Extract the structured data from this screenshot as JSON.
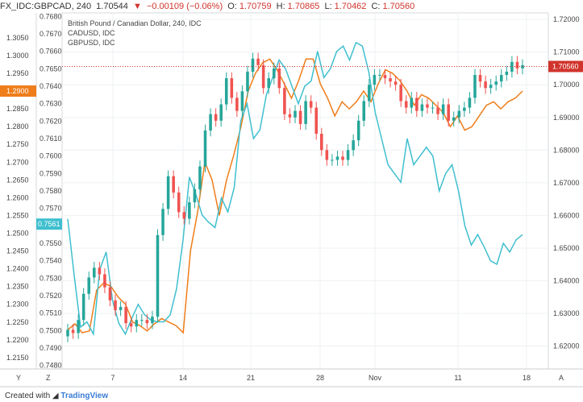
{
  "header": {
    "symbol": "FX_IDC:GBPCAD, 240",
    "last": "1.70544",
    "change": "−0.00109 (−0.06%)",
    "open_label": "O:",
    "open": "1.70759",
    "high_label": "H:",
    "high": "1.70865",
    "low_label": "L:",
    "low": "1.70462",
    "close_label": "C:",
    "close": "1.70560"
  },
  "legend": {
    "main": "British Pound / Canadian Dollar, 240, IDC",
    "cad": "CADUSD, IDC",
    "gbp": "GBPUSD, IDC"
  },
  "footer": {
    "created_with": "Created with",
    "brand": "TradingView"
  },
  "axis_buttons": {
    "left_y": "Y",
    "left_z": "Z",
    "right_a": "A"
  },
  "colors": {
    "candle_up": "#26a69a",
    "candle_down": "#ef5350",
    "cadusd": "#3fbfcf",
    "gbpusd": "#ef7d1a",
    "price_line": "#d0342c",
    "grid": "#eef0f3"
  },
  "chart_data": {
    "type": "line",
    "x_tick_labels": [
      "7",
      "14",
      "21",
      "28",
      "Nov",
      "11",
      "18"
    ],
    "axes": {
      "right_GBPCAD": {
        "ticks": [
          "1.72000",
          "1.71000",
          "1.70000",
          "1.69000",
          "1.68000",
          "1.67000",
          "1.66000",
          "1.65000",
          "1.64000",
          "1.63000",
          "1.62000"
        ],
        "range": [
          1.613,
          1.722
        ],
        "current_label": "1.70560",
        "current_value": 1.7056
      },
      "inner_CADUSD": {
        "ticks": [
          "0.7680",
          "0.7670",
          "0.7660",
          "0.7650",
          "0.7640",
          "0.7630",
          "0.7620",
          "0.7610",
          "0.7600",
          "0.7590",
          "0.7580",
          "0.7570",
          "0.7560",
          "0.7550",
          "0.7540",
          "0.7530",
          "0.7520",
          "0.7510",
          "0.7500",
          "0.7490",
          "0.7480"
        ],
        "range": [
          0.7478,
          0.7682
        ],
        "current_label": "0.7561",
        "current_value": 0.7561
      },
      "outer_GBPUSD": {
        "ticks": [
          "1.3050",
          "1.3000",
          "1.2950",
          "1.2900",
          "1.2850",
          "1.2800",
          "1.2750",
          "1.2700",
          "1.2650",
          "1.2600",
          "1.2550",
          "1.2500",
          "1.2450",
          "1.2400",
          "1.2350",
          "1.2300",
          "1.2250",
          "1.2200",
          "1.2150"
        ],
        "range": [
          1.2118,
          1.312
        ],
        "current_label": "1.2900",
        "current_value": 1.29
      }
    },
    "gbpcad_close": [
      1.625,
      1.624,
      1.628,
      1.636,
      1.641,
      1.644,
      1.642,
      1.638,
      1.634,
      1.631,
      1.632,
      1.627,
      1.626,
      1.628,
      1.628,
      1.627,
      1.629,
      1.654,
      1.662,
      1.672,
      1.667,
      1.661,
      1.659,
      1.664,
      1.668,
      1.675,
      1.686,
      1.691,
      1.689,
      1.694,
      1.702,
      1.696,
      1.692,
      1.698,
      1.704,
      1.708,
      1.706,
      1.699,
      1.702,
      1.705,
      1.699,
      1.691,
      1.69,
      1.692,
      1.688,
      1.695,
      1.693,
      1.685,
      1.68,
      1.677,
      1.677,
      1.678,
      1.677,
      1.68,
      1.683,
      1.689,
      1.695,
      1.7,
      1.703,
      1.703,
      1.702,
      1.701,
      1.7,
      1.695,
      1.693,
      1.696,
      1.692,
      1.694,
      1.693,
      1.693,
      1.691,
      1.694,
      1.689,
      1.69,
      1.692,
      1.693,
      1.696,
      1.703,
      1.701,
      1.699,
      1.7,
      1.701,
      1.703,
      1.704,
      1.707,
      1.705,
      1.706
    ],
    "cadusd": [
      0.7564,
      0.7532,
      0.7502,
      0.7505,
      0.7498,
      0.7535,
      0.7545,
      0.7517,
      0.7504,
      0.7498,
      0.7507,
      0.7515,
      0.7509,
      0.7506,
      0.7505,
      0.7505,
      0.7509,
      0.7524,
      0.7552,
      0.7588,
      0.7578,
      0.7566,
      0.7562,
      0.7559,
      0.7576,
      0.7568,
      0.7582,
      0.762,
      0.763,
      0.761,
      0.7615,
      0.7635,
      0.7645,
      0.7655,
      0.765,
      0.764,
      0.763,
      0.764,
      0.7643,
      0.766,
      0.7645,
      0.765,
      0.766,
      0.7663,
      0.7655,
      0.7665,
      0.7663,
      0.7648,
      0.7625,
      0.761,
      0.7595,
      0.759,
      0.7585,
      0.761,
      0.7595,
      0.76,
      0.7605,
      0.76,
      0.758,
      0.759,
      0.7595,
      0.758,
      0.756,
      0.7549,
      0.7555,
      0.7548,
      0.754,
      0.7538,
      0.755,
      0.7545,
      0.7552,
      0.7555
    ],
    "gbpusd": [
      1.2228,
      1.2245,
      1.222,
      1.2225,
      1.234,
      1.236,
      1.235,
      1.232,
      1.23,
      1.225,
      1.224,
      1.2225,
      1.2245,
      1.226,
      1.225,
      1.224,
      1.222,
      1.245,
      1.256,
      1.27,
      1.265,
      1.255,
      1.265,
      1.272,
      1.28,
      1.29,
      1.295,
      1.298,
      1.299,
      1.296,
      1.292,
      1.288,
      1.293,
      1.299,
      1.299,
      1.292,
      1.288,
      1.283,
      1.287,
      1.285,
      1.287,
      1.29,
      1.287,
      1.292,
      1.296,
      1.295,
      1.293,
      1.29,
      1.286,
      1.289,
      1.288,
      1.286,
      1.284,
      1.28,
      1.283,
      1.279,
      1.28,
      1.283,
      1.286,
      1.287,
      1.285,
      1.287,
      1.288,
      1.29
    ]
  }
}
